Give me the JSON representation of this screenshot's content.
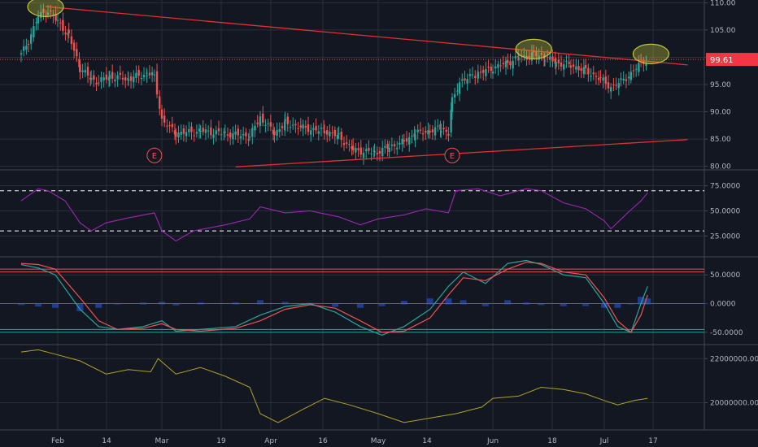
{
  "chart_data": {
    "type": "candlestick",
    "x_axis": {
      "ticks": [
        "Feb",
        "14",
        "Mar",
        "19",
        "Apr",
        "16",
        "May",
        "14",
        "Jun",
        "18",
        "Jul",
        "17"
      ]
    },
    "price_panel": {
      "y_ticks": [
        "110.00",
        "105.00",
        "100.00",
        "95.00",
        "90.00",
        "85.00",
        "80.00"
      ],
      "ylim": [
        79.5,
        110.5
      ],
      "last_price_label": "99.61",
      "last_price": 99.61,
      "earnings_markers": [
        "E",
        "E"
      ],
      "earnings_marker_x": [
        "Mar",
        "May 21"
      ],
      "trendlines": [
        {
          "from": [
            "Jan 27",
            109.3
          ],
          "to": [
            "Jul 26",
            98.6
          ],
          "color": "#e03131"
        },
        {
          "from": [
            "Mar 22",
            79.9
          ],
          "to": [
            "Jul 26",
            84.9
          ],
          "color": "#e03131"
        }
      ],
      "highlight_ellipses": [
        "Jan 27",
        "Jun 12",
        "Jul 15"
      ],
      "close_path": [
        [
          "Jan 17",
          100.5
        ],
        [
          "Jan 20",
          103
        ],
        [
          "Jan 24",
          107.5
        ],
        [
          "Jan 28",
          108.5
        ],
        [
          "Feb 1",
          106.5
        ],
        [
          "Feb 4",
          104
        ],
        [
          "Feb 7",
          98
        ],
        [
          "Feb 10",
          96
        ],
        [
          "Feb 12",
          95.5
        ],
        [
          "Feb 15",
          96.5
        ],
        [
          "Feb 20",
          96
        ],
        [
          "Feb 25",
          97
        ],
        [
          "Feb 27",
          96.5
        ],
        [
          "Mar 1",
          88.5
        ],
        [
          "Mar 5",
          86
        ],
        [
          "Mar 12",
          86.5
        ],
        [
          "Mar 19",
          86
        ],
        [
          "Mar 26",
          85.5
        ],
        [
          "Mar 29",
          89
        ],
        [
          "Apr 2",
          86
        ],
        [
          "Apr 5",
          88
        ],
        [
          "Apr 10",
          87
        ],
        [
          "Apr 16",
          86.5
        ],
        [
          "Apr 20",
          85.5
        ],
        [
          "Apr 24",
          83
        ],
        [
          "Apr 30",
          82.5
        ],
        [
          "May 4",
          83.5
        ],
        [
          "May 8",
          84.5
        ],
        [
          "May 11",
          86
        ],
        [
          "May 15",
          86.5
        ],
        [
          "May 18",
          87
        ],
        [
          "May 20",
          86
        ],
        [
          "May 21",
          92
        ],
        [
          "May 23",
          95.5
        ],
        [
          "May 28",
          97
        ],
        [
          "Jun 1",
          98
        ],
        [
          "Jun 5",
          99
        ],
        [
          "Jun 8",
          100
        ],
        [
          "Jun 12",
          100.5
        ],
        [
          "Jun 15",
          100
        ],
        [
          "Jun 18",
          99
        ],
        [
          "Jun 22",
          98.5
        ],
        [
          "Jun 26",
          97.5
        ],
        [
          "Jun 30",
          96
        ],
        [
          "Jul 3",
          94.5
        ],
        [
          "Jul 6",
          95.5
        ],
        [
          "Jul 9",
          97
        ],
        [
          "Jul 12",
          99
        ],
        [
          "Jul 14",
          99.61
        ]
      ]
    },
    "rsi_panel": {
      "y_ticks": [
        "75.0000",
        "50.0000",
        "25.0000"
      ],
      "ylim": [
        5,
        90
      ],
      "levels": [
        70,
        30
      ],
      "color": "#9c27b0",
      "series": [
        [
          "Jan 17",
          60
        ],
        [
          "Jan 24",
          72
        ],
        [
          "Jan 28",
          70
        ],
        [
          "Feb 3",
          60
        ],
        [
          "Feb 7",
          38
        ],
        [
          "Feb 10",
          30
        ],
        [
          "Feb 14",
          38
        ],
        [
          "Feb 20",
          43
        ],
        [
          "Feb 27",
          48
        ],
        [
          "Mar 1",
          30
        ],
        [
          "Mar 5",
          20
        ],
        [
          "Mar 10",
          30
        ],
        [
          "Mar 19",
          36
        ],
        [
          "Mar 26",
          42
        ],
        [
          "Mar 29",
          54
        ],
        [
          "Apr 5",
          48
        ],
        [
          "Apr 12",
          50
        ],
        [
          "Apr 20",
          44
        ],
        [
          "Apr 26",
          36
        ],
        [
          "May 1",
          42
        ],
        [
          "May 8",
          46
        ],
        [
          "May 14",
          52
        ],
        [
          "May 20",
          48
        ],
        [
          "May 22",
          70
        ],
        [
          "May 28",
          72
        ],
        [
          "Jun 3",
          65
        ],
        [
          "Jun 10",
          72
        ],
        [
          "Jun 14",
          70
        ],
        [
          "Jun 20",
          58
        ],
        [
          "Jun 26",
          52
        ],
        [
          "Jul 1",
          40
        ],
        [
          "Jul 3",
          32
        ],
        [
          "Jul 8",
          48
        ],
        [
          "Jul 12",
          60
        ],
        [
          "Jul 14",
          68
        ]
      ]
    },
    "stoch_panel": {
      "y_ticks": [
        "50.0000",
        "0.0000",
        "-50.0000"
      ],
      "ylim": [
        -70,
        80
      ],
      "levels_red": [
        60,
        55
      ],
      "levels_green": [
        -45,
        -50
      ],
      "zero_line_color": "#2962ff",
      "series": [
        {
          "color": "#26a69a",
          "values": [
            [
              "Jan 17",
              68
            ],
            [
              "Jan 24",
              62
            ],
            [
              "Jan 31",
              50
            ],
            [
              "Feb 7",
              -10
            ],
            [
              "Feb 12",
              -40
            ],
            [
              "Feb 17",
              -45
            ],
            [
              "Feb 24",
              -40
            ],
            [
              "Mar 1",
              -30
            ],
            [
              "Mar 5",
              -48
            ],
            [
              "Mar 12",
              -45
            ],
            [
              "Mar 22",
              -40
            ],
            [
              "Mar 29",
              -20
            ],
            [
              "Apr 5",
              -5
            ],
            [
              "Apr 12",
              0
            ],
            [
              "Apr 19",
              -15
            ],
            [
              "Apr 26",
              -40
            ],
            [
              "May 2",
              -55
            ],
            [
              "May 8",
              -40
            ],
            [
              "May 15",
              -10
            ],
            [
              "May 20",
              30
            ],
            [
              "May 24",
              55
            ],
            [
              "May 30",
              35
            ],
            [
              "Jun 5",
              70
            ],
            [
              "Jun 10",
              75
            ],
            [
              "Jun 14",
              68
            ],
            [
              "Jun 20",
              50
            ],
            [
              "Jun 26",
              45
            ],
            [
              "Jul 1",
              0
            ],
            [
              "Jul 5",
              -40
            ],
            [
              "Jul 9",
              -50
            ],
            [
              "Jul 12",
              0
            ],
            [
              "Jul 14",
              30
            ]
          ]
        },
        {
          "color": "#ef5350",
          "values": [
            [
              "Jan 17",
              70
            ],
            [
              "Jan 24",
              68
            ],
            [
              "Jan 31",
              60
            ],
            [
              "Feb 7",
              10
            ],
            [
              "Feb 12",
              -30
            ],
            [
              "Feb 17",
              -45
            ],
            [
              "Feb 24",
              -43
            ],
            [
              "Mar 1",
              -35
            ],
            [
              "Mar 5",
              -45
            ],
            [
              "Mar 12",
              -48
            ],
            [
              "Mar 22",
              -43
            ],
            [
              "Mar 29",
              -30
            ],
            [
              "Apr 5",
              -10
            ],
            [
              "Apr 12",
              -2
            ],
            [
              "Apr 19",
              -8
            ],
            [
              "Apr 26",
              -30
            ],
            [
              "May 2",
              -50
            ],
            [
              "May 8",
              -48
            ],
            [
              "May 15",
              -25
            ],
            [
              "May 20",
              15
            ],
            [
              "May 24",
              45
            ],
            [
              "May 30",
              40
            ],
            [
              "Jun 5",
              60
            ],
            [
              "Jun 10",
              72
            ],
            [
              "Jun 14",
              70
            ],
            [
              "Jun 20",
              55
            ],
            [
              "Jun 26",
              50
            ],
            [
              "Jul 1",
              10
            ],
            [
              "Jul 5",
              -30
            ],
            [
              "Jul 9",
              -50
            ],
            [
              "Jul 12",
              -20
            ],
            [
              "Jul 14",
              15
            ]
          ]
        }
      ],
      "histogram_color": "#2962ff"
    },
    "volume_panel": {
      "y_ticks": [
        "22000000.0000",
        "20000000.0000"
      ],
      "ylim": [
        18800000,
        22600000
      ],
      "color": "#b0a422",
      "series": [
        [
          "Jan 17",
          22300000
        ],
        [
          "Jan 24",
          22400000
        ],
        [
          "Jan 31",
          22200000
        ],
        [
          "Feb 7",
          21900000
        ],
        [
          "Feb 14",
          21300000
        ],
        [
          "Feb 20",
          21500000
        ],
        [
          "Feb 26",
          21400000
        ],
        [
          "Feb 28",
          22000000
        ],
        [
          "Mar 5",
          21300000
        ],
        [
          "Mar 12",
          21600000
        ],
        [
          "Mar 19",
          21200000
        ],
        [
          "Mar 26",
          20700000
        ],
        [
          "Mar 29",
          19500000
        ],
        [
          "Apr 3",
          19100000
        ],
        [
          "Apr 10",
          19700000
        ],
        [
          "Apr 16",
          20200000
        ],
        [
          "Apr 23",
          19900000
        ],
        [
          "May 1",
          19500000
        ],
        [
          "May 8",
          19100000
        ],
        [
          "May 15",
          19300000
        ],
        [
          "May 22",
          19500000
        ],
        [
          "May 29",
          19800000
        ],
        [
          "Jun 1",
          20200000
        ],
        [
          "Jun 8",
          20300000
        ],
        [
          "Jun 14",
          20700000
        ],
        [
          "Jun 20",
          20600000
        ],
        [
          "Jun 26",
          20400000
        ],
        [
          "Jul 1",
          20100000
        ],
        [
          "Jul 5",
          19900000
        ],
        [
          "Jul 10",
          20100000
        ],
        [
          "Jul 14",
          20200000
        ]
      ]
    },
    "colors": {
      "background": "#131722",
      "up": "#26a69a",
      "down": "#ef5350",
      "trendline": "#e03131",
      "highlight": "#c2c53a",
      "grid": "#2a2e39",
      "axis_text": "#b2b5be"
    }
  }
}
